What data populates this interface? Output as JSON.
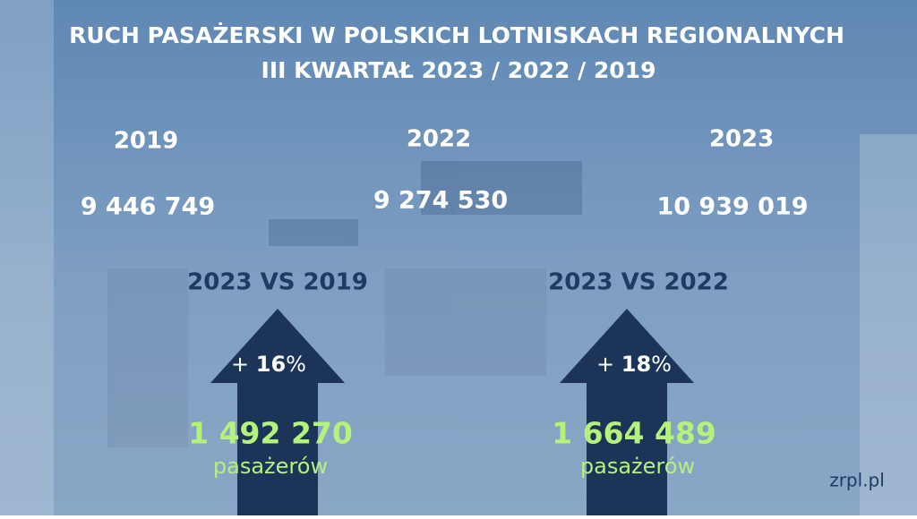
{
  "title": {
    "line1": "RUCH PASAŻERSKI W POLSKICH LOTNISKACH REGIONALNYCH",
    "line2": "III KWARTAŁ 2023 / 2022 / 2019"
  },
  "years": [
    {
      "year": "2019",
      "passengers": "9 446 749"
    },
    {
      "year": "2022",
      "passengers": "9 274 530"
    },
    {
      "year": "2023",
      "passengers": "10 939 019"
    }
  ],
  "comparisons": [
    {
      "label": "2023 VS 2019",
      "sign": "+",
      "change": "16",
      "unit": "%",
      "difference": "1 492 270",
      "difference_unit": "pasażerów"
    },
    {
      "label": "2023 VS 2022",
      "sign": "+",
      "change": "18",
      "unit": "%",
      "difference": "1 664 489",
      "difference_unit": "pasażerów"
    }
  ],
  "source": "zrpl.pl"
}
